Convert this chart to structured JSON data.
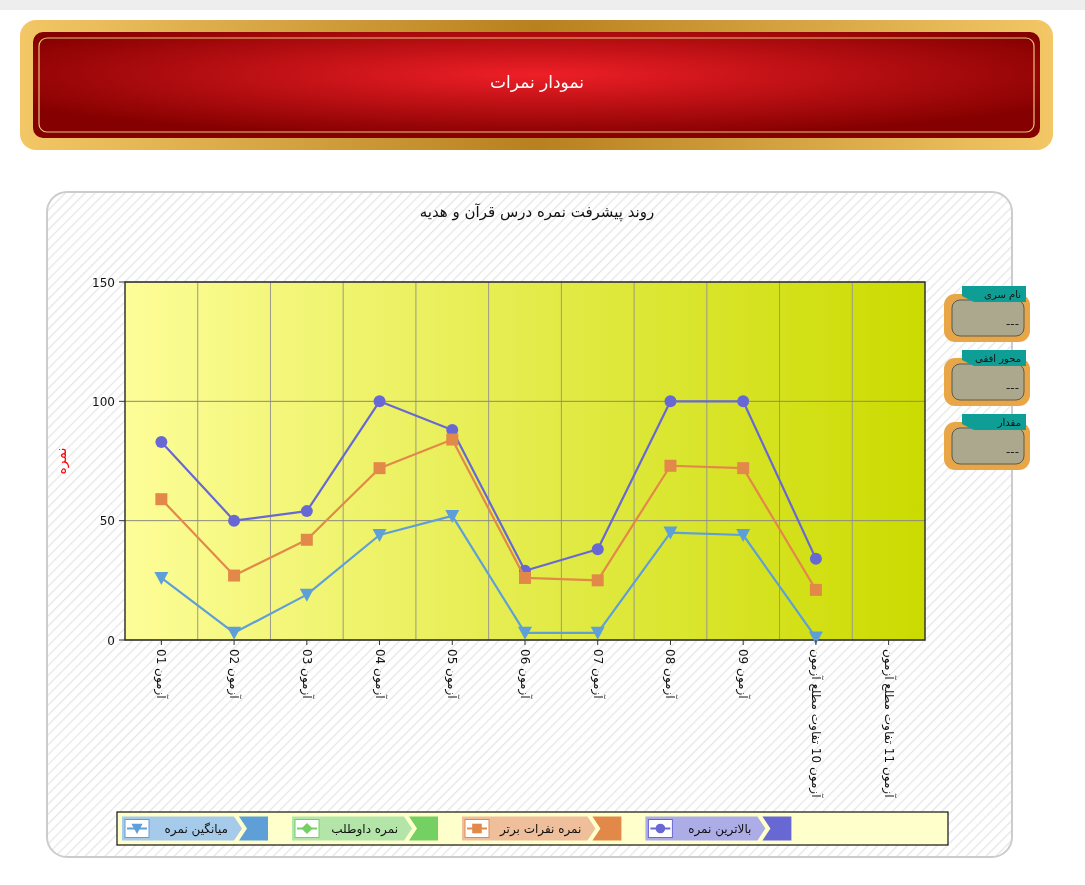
{
  "chart_data": {
    "type": "line",
    "title": "نمودار نمرات",
    "subtitle": "روند پیشرفت نمره درس قرآن و هدیه",
    "ylabel": "نمره",
    "categories": [
      "آزمون 01",
      "آزمون 02",
      "آزمون 03",
      "آزمون 04",
      "آزمون 05",
      "آزمون 06",
      "آزمون 07",
      "آزمون 08",
      "آزمون 09",
      "آزمون 10 تفاوت مطلع آزمون",
      "آزمون 11 تفاوت مطلع آزمون"
    ],
    "series": [
      {
        "name": "میانگین نمره",
        "color": "#5e9fd8",
        "marker": "triangle",
        "values": [
          26,
          3,
          19,
          44,
          52,
          3,
          3,
          45,
          44,
          1,
          null
        ]
      },
      {
        "name": "نمره داوطلب",
        "color": "#74d062",
        "marker": "diamond",
        "values": [
          null,
          null,
          null,
          null,
          null,
          null,
          null,
          null,
          null,
          null,
          null
        ]
      },
      {
        "name": "نمره نفرات برتر",
        "color": "#e2894a",
        "marker": "square",
        "values": [
          59,
          27,
          42,
          72,
          84,
          26,
          25,
          73,
          72,
          21,
          null
        ]
      },
      {
        "name": "بالاترین نمره",
        "color": "#6868d4",
        "marker": "circle",
        "values": [
          83,
          50,
          54,
          100,
          88,
          29,
          38,
          100,
          100,
          34,
          null
        ]
      }
    ],
    "ylim": [
      0,
      150
    ],
    "yticks": [
      0,
      50,
      100,
      150
    ],
    "grid": true,
    "legend": "bottom",
    "line_style": "solid",
    "annotations": [
      "نام سری",
      "---",
      "محور افقی",
      "---",
      "مقدار",
      "---"
    ]
  }
}
